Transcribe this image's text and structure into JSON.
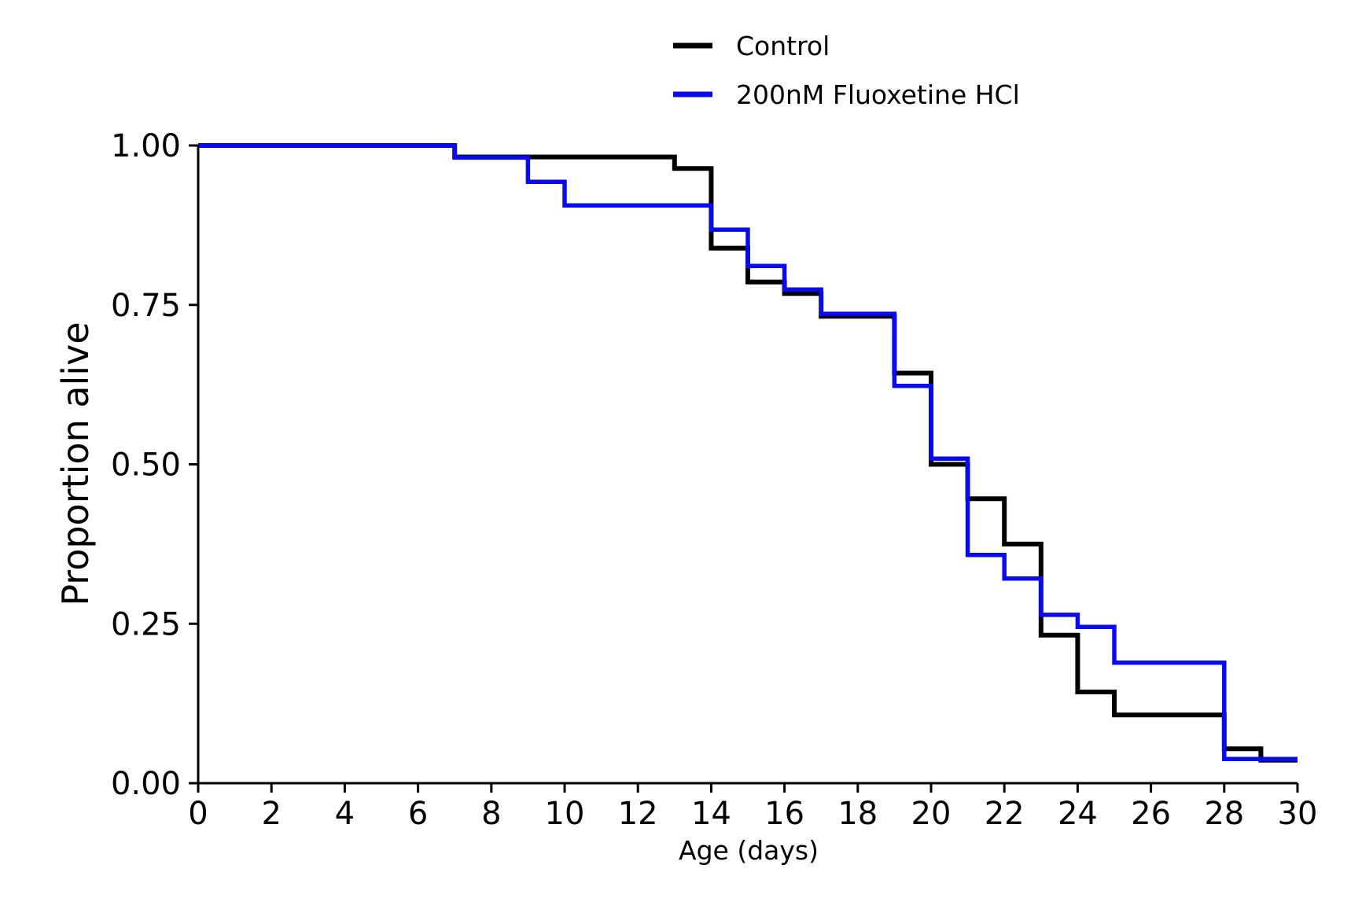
{
  "chart_data": {
    "type": "line",
    "step": true,
    "xlabel": "Age (days)",
    "ylabel": "Proportion alive",
    "xlim": [
      0,
      30
    ],
    "ylim": [
      0,
      1
    ],
    "x_ticks": [
      0,
      2,
      4,
      6,
      8,
      10,
      12,
      14,
      16,
      18,
      20,
      22,
      24,
      26,
      28,
      30
    ],
    "x_tick_labels": [
      "0",
      "2",
      "4",
      "6",
      "8",
      "10",
      "12",
      "14",
      "16",
      "18",
      "20",
      "22",
      "24",
      "26",
      "28",
      "30"
    ],
    "y_ticks": [
      0,
      0.25,
      0.5,
      0.75,
      1.0
    ],
    "y_tick_labels": [
      "0.00",
      "0.25",
      "0.50",
      "0.75",
      "1.00"
    ],
    "grid": false,
    "legend_position": "top-center",
    "series": [
      {
        "name": "Control",
        "color": "#000000",
        "x": [
          0,
          7,
          13,
          14,
          15,
          16,
          17,
          19,
          20,
          21,
          22,
          23,
          24,
          25,
          28,
          29,
          30
        ],
        "y": [
          1.0,
          0.982,
          0.964,
          0.839,
          0.786,
          0.768,
          0.732,
          0.643,
          0.5,
          0.446,
          0.375,
          0.232,
          0.143,
          0.107,
          0.054,
          0.036,
          0.036
        ]
      },
      {
        "name": "200nM Fluoxetine HCl",
        "color": "#0a0aee",
        "x": [
          0,
          7,
          9,
          10,
          14,
          15,
          16,
          17,
          19,
          20,
          21,
          22,
          23,
          24,
          25,
          28,
          30
        ],
        "y": [
          1.0,
          0.981,
          0.943,
          0.906,
          0.868,
          0.811,
          0.774,
          0.736,
          0.623,
          0.509,
          0.358,
          0.321,
          0.264,
          0.245,
          0.189,
          0.038,
          0.038
        ]
      }
    ]
  }
}
